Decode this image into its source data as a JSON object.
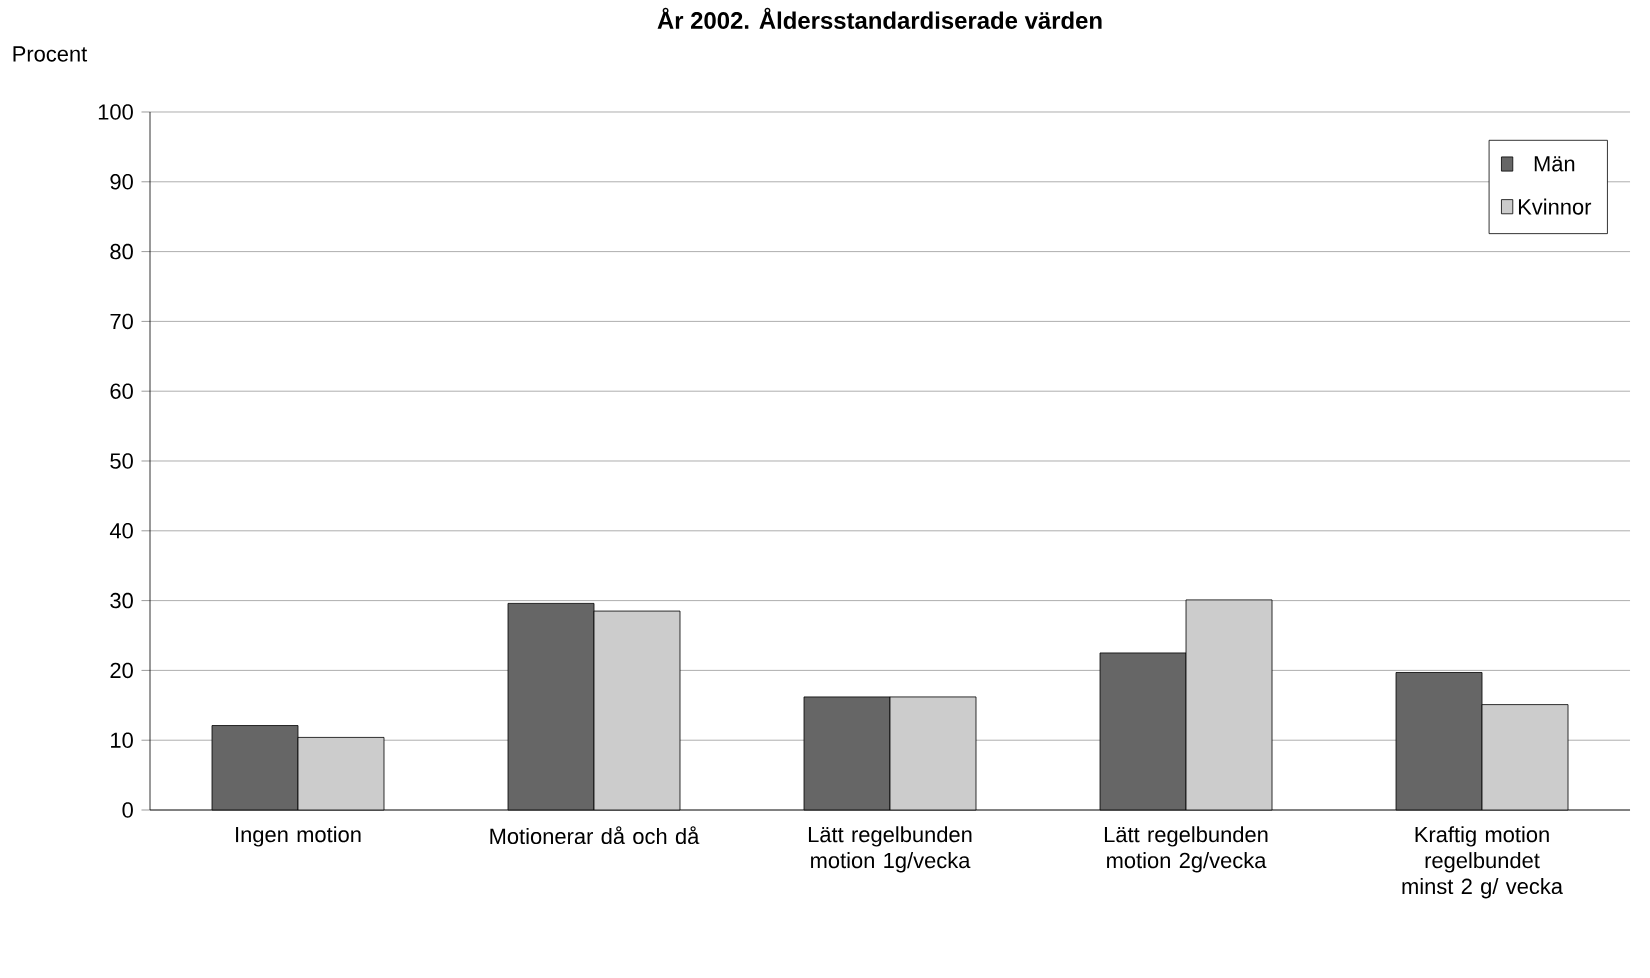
{
  "chart_data": {
    "type": "bar",
    "title": "År 2002. Åldersstandardiserade värden",
    "ylabel": "Procent",
    "categories": [
      "Ingen motion",
      "Motionerar då och då",
      "Lätt regelbunden motion 1g/vecka",
      "Lätt regelbunden motion 2g/vecka",
      "Kraftig motion regelbundet minst 2 g/ vecka"
    ],
    "series": [
      {
        "name": "Män",
        "color": "#666666",
        "values": [
          12.1,
          29.6,
          16.2,
          22.5,
          19.7
        ]
      },
      {
        "name": "Kvinnor",
        "color": "#cccccc",
        "values": [
          10.4,
          28.5,
          16.2,
          30.1,
          15.1
        ]
      }
    ],
    "ylim": [
      0,
      100
    ],
    "yticks": [
      0,
      10,
      20,
      30,
      40,
      50,
      60,
      70,
      80,
      90,
      100
    ],
    "grid": "y",
    "legend": "top right"
  }
}
